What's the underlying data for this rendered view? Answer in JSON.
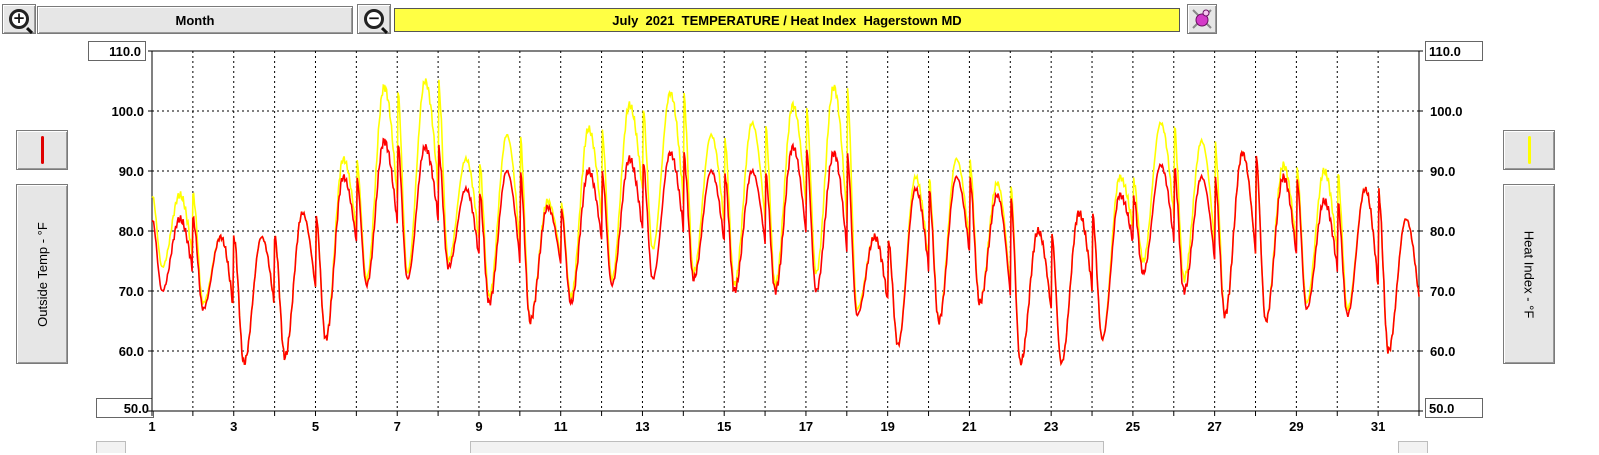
{
  "toolbar": {
    "zoom_in_icon": "zoom-in-icon",
    "zoom_out_icon": "zoom-out-icon",
    "period_label": "Month",
    "settings_icon": "settings-icon"
  },
  "colors": {
    "outside_temp": "#ff0000",
    "heat_index": "#ffff00",
    "title_bg": "#ffff44",
    "grid": "#000000"
  },
  "left_axis_label": "Outside Temp - °F",
  "right_axis_label": "Heat Index - °F",
  "chart_data": {
    "type": "line",
    "title": "July  2021  TEMPERATURE / Heat Index  Hagerstown MD",
    "xlim": [
      1,
      32
    ],
    "ylim": [
      50,
      110
    ],
    "x_tick_labels": [
      "1",
      "3",
      "5",
      "7",
      "9",
      "11",
      "13",
      "15",
      "17",
      "19",
      "21",
      "23",
      "25",
      "27",
      "29",
      "31"
    ],
    "y_tick_labels": [
      "50.0",
      "60.0",
      "70.0",
      "80.0",
      "90.0",
      "100.0",
      "110.0"
    ],
    "grid": true,
    "day_min_max": {
      "days": [
        1,
        2,
        3,
        4,
        5,
        6,
        7,
        8,
        9,
        10,
        11,
        12,
        13,
        14,
        15,
        16,
        17,
        18,
        19,
        20,
        21,
        22,
        23,
        24,
        25,
        26,
        27,
        28,
        29,
        30,
        31
      ],
      "temp_max": [
        82,
        79,
        79,
        83,
        89,
        95,
        94,
        87,
        90,
        84,
        90,
        92,
        93,
        90,
        90,
        94,
        93,
        79,
        87,
        89,
        86,
        80,
        83,
        86,
        91,
        89,
        93,
        89,
        85,
        87,
        82
      ],
      "temp_min": [
        70,
        67,
        58,
        59,
        62,
        71,
        72,
        74,
        68,
        65,
        68,
        71,
        72,
        72,
        70,
        70,
        70,
        66,
        61,
        65,
        68,
        58,
        58,
        62,
        73,
        70,
        66,
        65,
        67,
        66,
        60
      ],
      "heat_max": [
        86,
        79,
        79,
        83,
        92,
        104,
        105,
        92,
        96,
        85,
        97,
        101,
        103,
        96,
        98,
        101,
        104,
        79,
        89,
        92,
        88,
        80,
        83,
        89,
        98,
        95,
        93,
        91,
        90,
        87,
        82
      ],
      "heat_min": [
        74,
        68,
        58,
        59,
        62,
        72,
        73,
        75,
        69,
        65,
        69,
        72,
        77,
        73,
        71,
        71,
        73,
        67,
        61,
        65,
        68,
        58,
        58,
        62,
        75,
        72,
        66,
        65,
        68,
        67,
        60
      ]
    },
    "series": [
      {
        "name": "Outside Temp - °F",
        "color": "#ff0000"
      },
      {
        "name": "Heat Index - °F",
        "color": "#ffff00"
      }
    ]
  }
}
